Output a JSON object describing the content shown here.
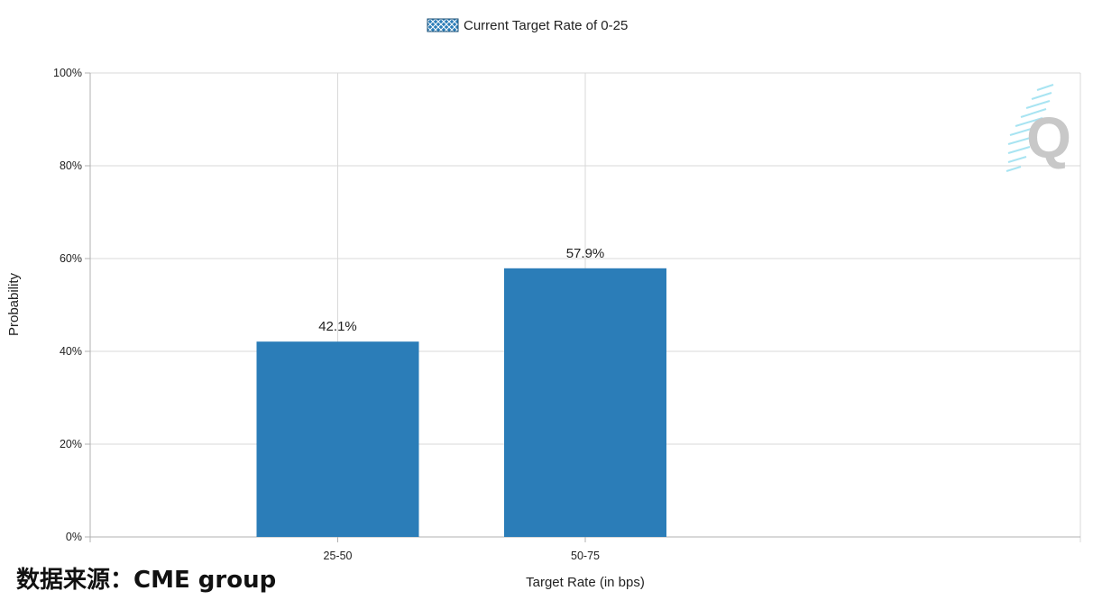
{
  "legend": {
    "label": "Current Target Rate of 0-25"
  },
  "source": {
    "text": "数据来源：CME group"
  },
  "watermark": {
    "letter": "Q"
  },
  "colors": {
    "bar": "#2b7db8",
    "grid": "#d9d9d9",
    "axis": "#b0b0b0",
    "watermark": "#c8c8c8",
    "watermark_lines": "#a8e4f2"
  },
  "chart_data": {
    "type": "bar",
    "title": "",
    "xlabel": "Target Rate (in bps)",
    "ylabel": "Probability",
    "categories": [
      "25-50",
      "50-75"
    ],
    "values": [
      42.1,
      57.9
    ],
    "data_labels": [
      "42.1%",
      "57.9%"
    ],
    "ylim": [
      0,
      100
    ],
    "yticks": [
      0,
      20,
      40,
      60,
      80,
      100
    ],
    "ytick_labels": [
      "0%",
      "20%",
      "40%",
      "60%",
      "80%",
      "100%"
    ],
    "grid": true,
    "legend_position": "top-center"
  }
}
